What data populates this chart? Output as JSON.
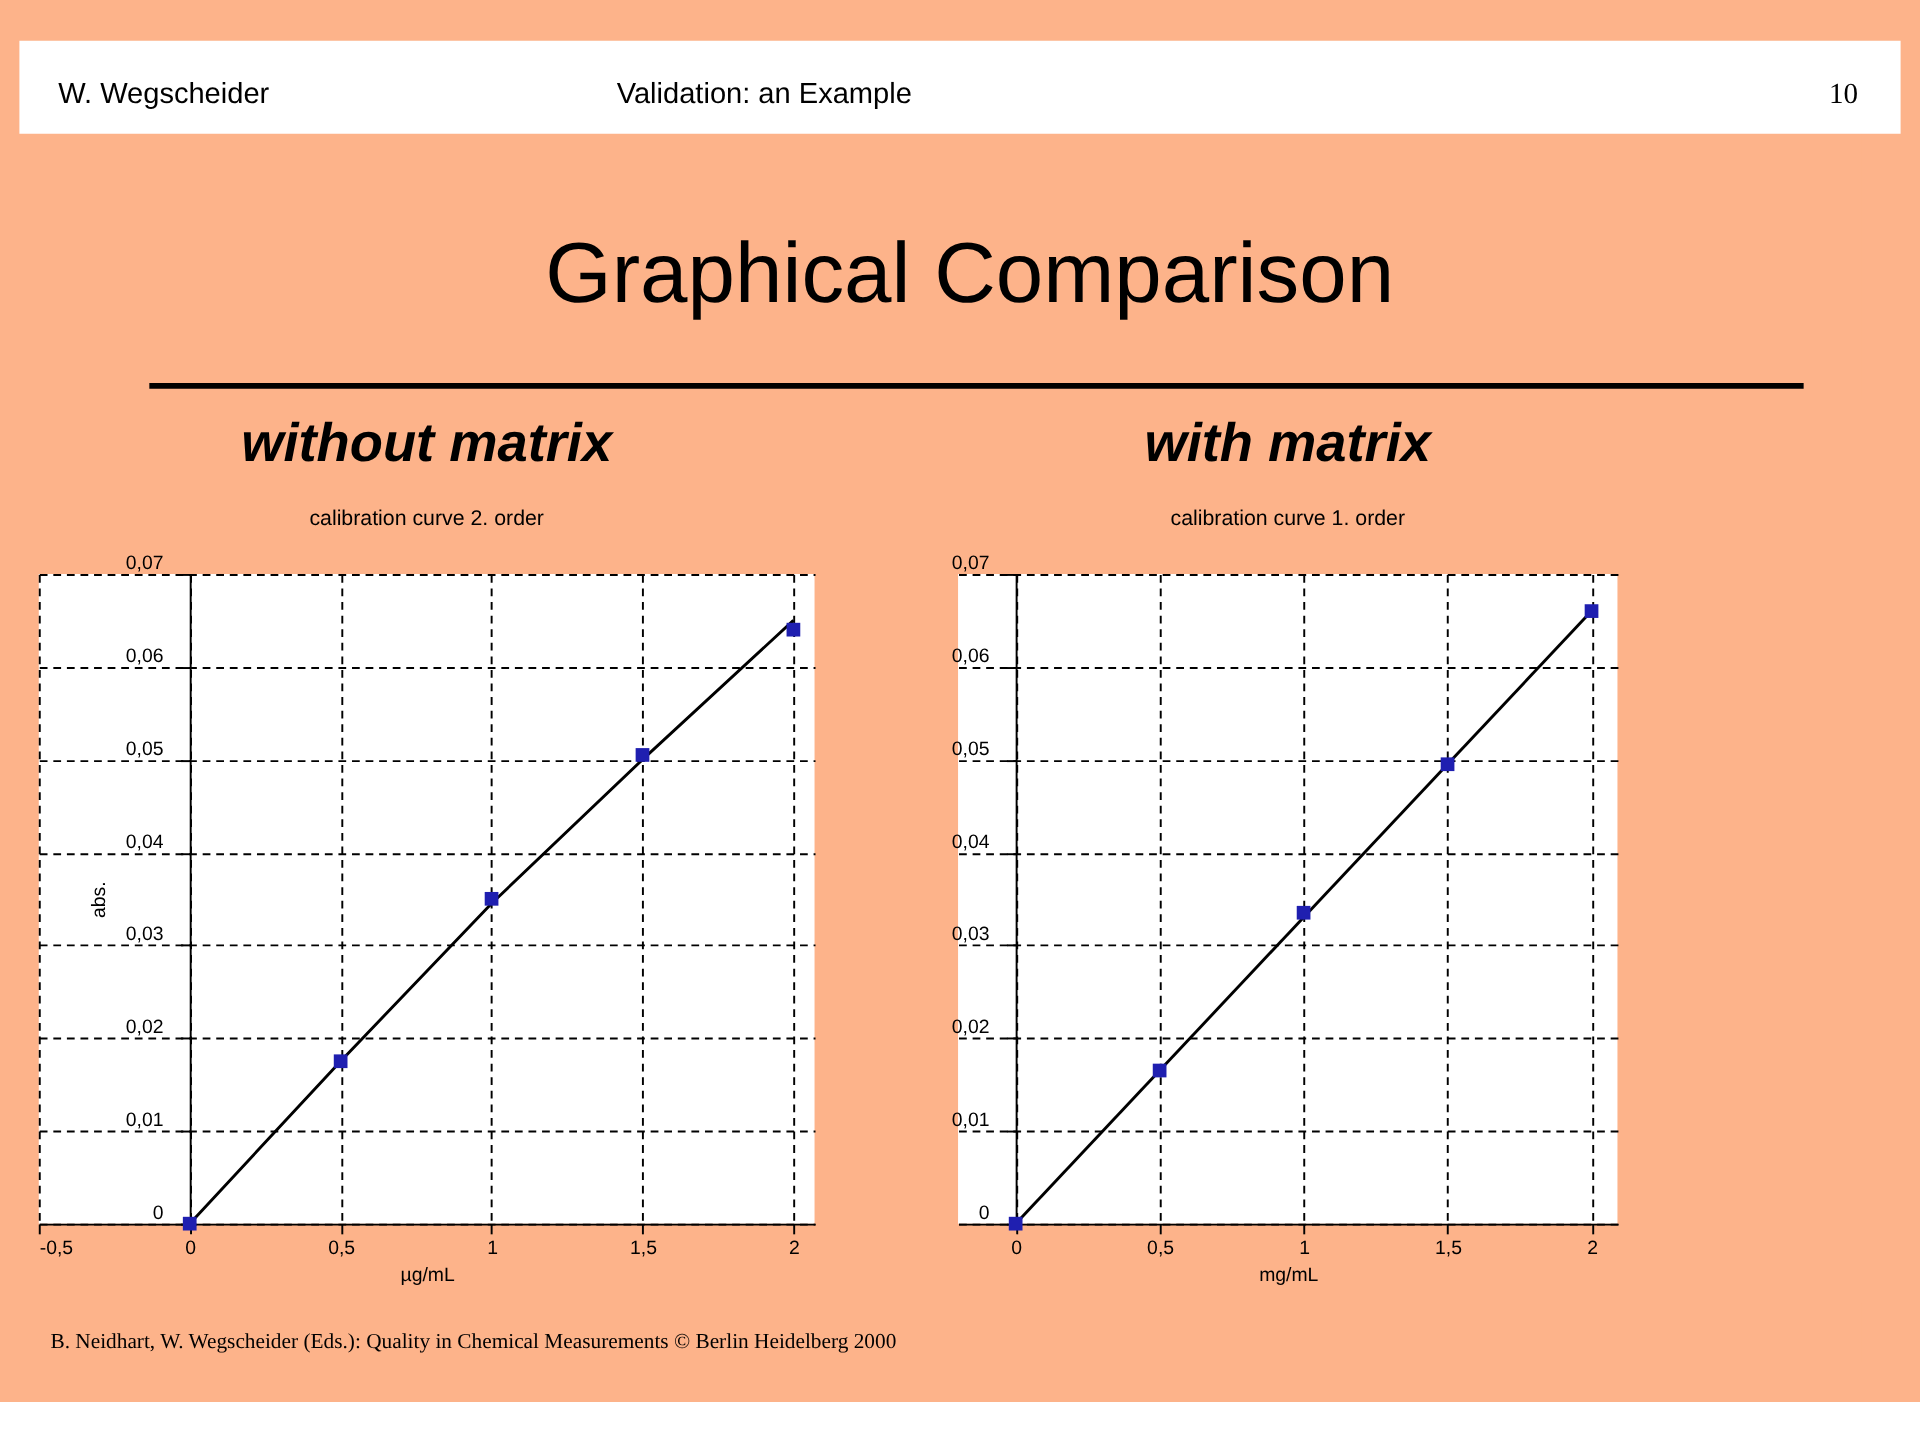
{
  "chart_data": [
    {
      "type": "scatter",
      "title": "calibration curve 2. order",
      "subtitle": "without matrix",
      "xlabel": "µg/mL",
      "ylabel": "abs.",
      "annotations": [
        "W.  Wegscheider",
        "Validation: an Example",
        "10",
        "Graphical Comparison",
        "B. Neidhart, W. Wegscheider  (Eds.): Quality in Chemical Measurements © Berlin Heidelberg 2000"
      ],
      "x": [
        0,
        0.5,
        1,
        1.5,
        2
      ],
      "series": [
        {
          "type": "line",
          "marker": "none",
          "color": "#000000",
          "x": [
            0,
            0.5,
            1,
            1.5,
            2
          ],
          "values": [
            0,
            0.0175,
            0.0345,
            0.05,
            0.065
          ]
        },
        {
          "marker": "square",
          "color": "#1f1fb0",
          "values": [
            0,
            0.0175,
            0.035,
            0.0505,
            0.064
          ]
        }
      ],
      "xlim": [
        -0.5,
        2.07
      ],
      "ylim": [
        0,
        0.07
      ],
      "xticks": [
        {
          "value": -0.5,
          "label": "-0,5"
        },
        0,
        {
          "value": 0.5,
          "label": "0,5"
        },
        1,
        {
          "value": 1.5,
          "label": "1,5"
        },
        2
      ],
      "yticks": [
        0,
        {
          "value": 0.01,
          "label": "0,01"
        },
        {
          "value": 0.02,
          "label": "0,02"
        },
        {
          "value": 0.03,
          "label": "0,03"
        },
        {
          "value": 0.04,
          "label": "0,04"
        },
        {
          "value": 0.05,
          "label": "0,05"
        },
        {
          "value": 0.06,
          "label": "0,06"
        },
        {
          "value": 0.07,
          "label": "0,07"
        }
      ],
      "grid": true
    },
    {
      "type": "scatter",
      "title": "calibration curve 1. order",
      "subtitle": "with matrix",
      "xlabel": "mg/mL",
      "x": [
        0,
        0.5,
        1,
        1.5,
        2
      ],
      "series": [
        {
          "type": "line",
          "marker": "none",
          "color": "#000000",
          "x": [
            0,
            2
          ],
          "values": [
            0,
            0.066
          ]
        },
        {
          "marker": "square",
          "color": "#1f1fb0",
          "values": [
            0,
            0.0165,
            0.0335,
            0.0495,
            0.066
          ]
        }
      ],
      "xlim": [
        -0.2,
        2.09
      ],
      "ylim": [
        0,
        0.07
      ],
      "xticks": [
        0,
        {
          "value": 0.5,
          "label": "0,5"
        },
        1,
        {
          "value": 1.5,
          "label": "1,5"
        },
        2
      ],
      "yticks": [
        0,
        {
          "value": 0.01,
          "label": "0,01"
        },
        {
          "value": 0.02,
          "label": "0,02"
        },
        {
          "value": 0.03,
          "label": "0,03"
        },
        {
          "value": 0.04,
          "label": "0,04"
        },
        {
          "value": 0.05,
          "label": "0,05"
        },
        {
          "value": 0.06,
          "label": "0,06"
        },
        {
          "value": 0.07,
          "label": "0,07"
        }
      ],
      "grid": true
    }
  ]
}
